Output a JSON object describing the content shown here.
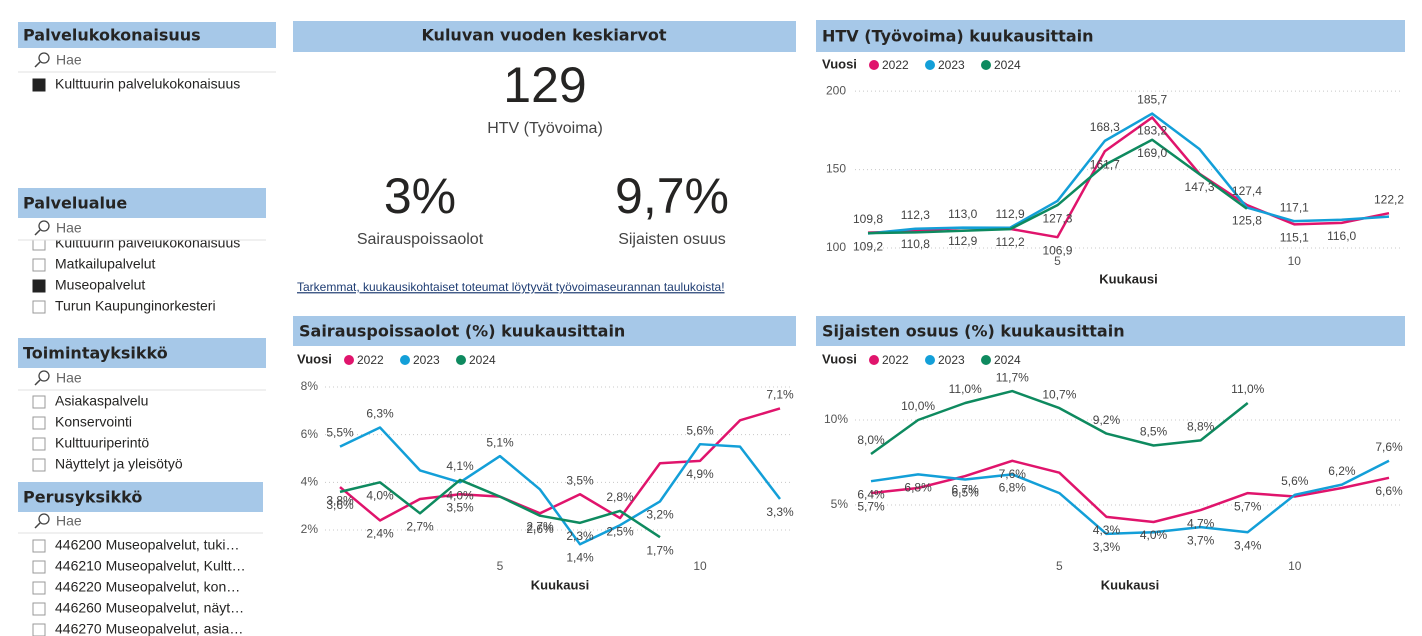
{
  "slicers": [
    {
      "title": "Palvelukokonaisuus",
      "search": "Hae",
      "items": [
        {
          "label": "Kulttuurin palvelukokonaisuus",
          "selected": true
        }
      ]
    },
    {
      "title": "Palvelualue",
      "search": "Hae",
      "items": [
        {
          "label": "Kulttuurin palvelukokonaisuus",
          "selected": false
        },
        {
          "label": "Matkailupalvelut",
          "selected": false
        },
        {
          "label": "Museopalvelut",
          "selected": true
        },
        {
          "label": "Turun Kaupunginorkesteri",
          "selected": false
        }
      ]
    },
    {
      "title": "Toimintayksikkö",
      "search": "Hae",
      "items": [
        {
          "label": "Asiakaspalvelu",
          "selected": false
        },
        {
          "label": "Konservointi",
          "selected": false
        },
        {
          "label": "Kulttuuriperintö",
          "selected": false
        },
        {
          "label": "Näyttelyt ja yleisötyö",
          "selected": false
        }
      ]
    },
    {
      "title": "Perusyksikkö",
      "search": "Hae",
      "items": [
        {
          "label": "446200 Museopalvelut, tuki…",
          "selected": false
        },
        {
          "label": "446210 Museopalvelut, Kultt…",
          "selected": false
        },
        {
          "label": "446220 Museopalvelut, kon…",
          "selected": false
        },
        {
          "label": "446260 Museopalvelut, näyt…",
          "selected": false
        },
        {
          "label": "446270 Museopalvelut, asia…",
          "selected": false
        }
      ]
    }
  ],
  "kpi_header": "Kuluvan vuoden keskiarvot",
  "kpis": [
    {
      "value": "129",
      "label": "HTV (Työvoima)"
    },
    {
      "value": "3%",
      "label": "Sairauspoissaolot"
    },
    {
      "value": "9,7%",
      "label": "Sijaisten osuus"
    }
  ],
  "link": "Tarkemmat, kuukausikohtaiset toteumat löytyvät työvoimaseurannan taulukoista!",
  "chart_data": [
    {
      "type": "line",
      "title": "HTV (Työvoima) kuukausittain",
      "legend_title": "Vuosi",
      "x_label": "Kuukausi",
      "x": [
        1,
        2,
        3,
        4,
        5,
        6,
        7,
        8,
        9,
        10,
        11,
        12
      ],
      "xlim": [
        1,
        12
      ],
      "xticks": [
        5,
        10
      ],
      "ylim": [
        100,
        202
      ],
      "yticks": [
        100,
        150,
        200
      ],
      "grid": true,
      "series": [
        {
          "name": "2022",
          "color": "#e0146c",
          "values": [
            109.8,
            110.8,
            112.9,
            112.2,
            106.9,
            161.7,
            183.2,
            147.3,
            127.4,
            115.1,
            116.0,
            122.2
          ],
          "value_labels": [
            "109,8",
            "110,8",
            "112,9",
            "112,2",
            "106,9",
            "161,7",
            "183,2",
            "147,3",
            "127,4",
            "115,1",
            "116,0",
            "122,2"
          ]
        },
        {
          "name": "2023",
          "color": "#139fd8",
          "values": [
            109.2,
            112.3,
            113.0,
            112.9,
            130,
            168.3,
            185.7,
            163,
            125.8,
            117.1,
            118,
            120
          ],
          "value_labels": [
            "109,2",
            "112,3",
            "113,0",
            "112,9",
            null,
            "168,3",
            "185,7",
            null,
            "125,8",
            "117,1",
            null,
            null
          ]
        },
        {
          "name": "2024",
          "color": "#0e8a5f",
          "values": [
            109.5,
            110,
            111,
            112,
            127.3,
            153,
            169.0,
            147,
            125,
            null,
            null,
            null
          ],
          "value_labels": [
            null,
            null,
            null,
            null,
            "127,3",
            null,
            "169,0",
            null,
            null,
            null,
            null,
            null
          ]
        }
      ]
    },
    {
      "type": "line",
      "title": "Sairauspoissaolot (%) kuukausittain",
      "legend_title": "Vuosi",
      "x_label": "Kuukausi",
      "x": [
        1,
        2,
        3,
        4,
        5,
        6,
        7,
        8,
        9,
        10,
        11,
        12
      ],
      "xlim": [
        1,
        12
      ],
      "xticks": [
        5,
        10
      ],
      "ylim": [
        1.4,
        8.1
      ],
      "yticks": [
        {
          "value": 2,
          "label": "2%"
        },
        {
          "value": 4,
          "label": "4%"
        },
        {
          "value": 6,
          "label": "6%"
        },
        {
          "value": 8,
          "label": "8%"
        }
      ],
      "grid": true,
      "series": [
        {
          "name": "2022",
          "color": "#e0146c",
          "values": [
            3.8,
            2.4,
            3.3,
            3.5,
            3.4,
            2.7,
            3.5,
            2.5,
            4.8,
            4.9,
            6.6,
            7.1
          ],
          "value_labels": [
            "3,8%",
            "2,4%",
            null,
            "3,5%",
            null,
            "2,7%",
            "3,5%",
            "2,5%",
            null,
            "4,9%",
            null,
            "7,1%"
          ]
        },
        {
          "name": "2023",
          "color": "#139fd8",
          "values": [
            5.5,
            6.3,
            4.5,
            4.0,
            5.1,
            3.7,
            1.4,
            2.2,
            3.2,
            5.6,
            5.5,
            3.3
          ],
          "value_labels": [
            "5,5%",
            "6,3%",
            null,
            "4,0%",
            "5,1%",
            null,
            "1,4%",
            null,
            "3,2%",
            "5,6%",
            null,
            "3,3%"
          ]
        },
        {
          "name": "2024",
          "color": "#0e8a5f",
          "values": [
            3.6,
            4.0,
            2.7,
            4.1,
            3.4,
            2.6,
            2.3,
            2.8,
            1.7,
            null,
            null,
            null
          ],
          "value_labels": [
            "3,6%",
            "4,0%",
            "2,7%",
            "4,1%",
            null,
            "2,6%",
            "2,3%",
            "2,8%",
            "1,7%",
            null,
            null,
            null
          ]
        }
      ]
    },
    {
      "type": "line",
      "title": "Sijaisten osuus (%) kuukausittain",
      "legend_title": "Vuosi",
      "x_label": "Kuukausi",
      "x": [
        1,
        2,
        3,
        4,
        5,
        6,
        7,
        8,
        9,
        10,
        11,
        12
      ],
      "xlim": [
        1,
        12
      ],
      "xticks": [
        5,
        10
      ],
      "ylim": [
        2,
        12.1
      ],
      "yticks": [
        {
          "value": 5,
          "label": "5%"
        },
        {
          "value": 10,
          "label": "10%"
        }
      ],
      "grid": true,
      "series": [
        {
          "name": "2022",
          "color": "#e0146c",
          "values": [
            5.7,
            6.0,
            6.7,
            7.6,
            6.9,
            4.3,
            4.0,
            4.7,
            5.7,
            5.5,
            6.0,
            6.6
          ],
          "value_labels": [
            "5,7%",
            null,
            "6,7%",
            "7,6%",
            null,
            "4,3%",
            "4,0%",
            "4,7%",
            "5,7%",
            null,
            null,
            "6,6%"
          ]
        },
        {
          "name": "2023",
          "color": "#139fd8",
          "values": [
            6.4,
            6.8,
            6.5,
            6.8,
            5.7,
            3.3,
            3.4,
            3.7,
            3.4,
            5.6,
            6.2,
            7.6
          ],
          "value_labels": [
            "6,4%",
            "6,8%",
            "6,5%",
            "6,8%",
            null,
            "3,3%",
            null,
            "3,7%",
            "3,4%",
            "5,6%",
            "6,2%",
            "7,6%"
          ]
        },
        {
          "name": "2024",
          "color": "#0e8a5f",
          "values": [
            8.0,
            10.0,
            11.0,
            11.7,
            10.7,
            9.2,
            8.5,
            8.8,
            11.0,
            null,
            null,
            null
          ],
          "value_labels": [
            "8,0%",
            "10,0%",
            "11,0%",
            "11,7%",
            "10,7%",
            "9,2%",
            "8,5%",
            "8,8%",
            "11,0%",
            null,
            null,
            null
          ]
        }
      ]
    }
  ]
}
